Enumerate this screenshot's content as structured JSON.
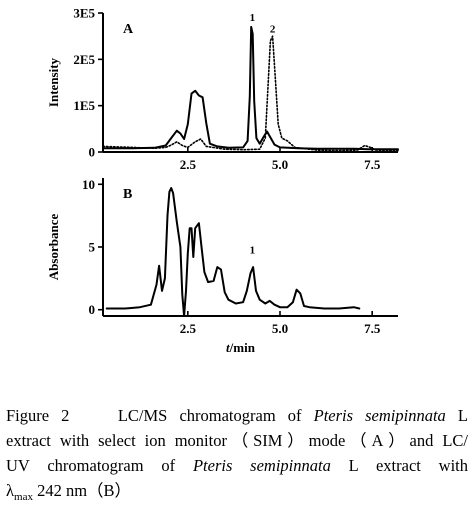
{
  "chart_data": [
    {
      "type": "line",
      "panel_label": "A",
      "ylabel": "Intensity",
      "xlim": [
        0.2,
        8.2
      ],
      "ylim": [
        0,
        300000
      ],
      "x_ticks": [
        "2.5",
        "5.0",
        "7.5"
      ],
      "x_tick_values": [
        2.5,
        5.0,
        7.5
      ],
      "y_ticks": [
        "0",
        "1E5",
        "2E5",
        "3E5"
      ],
      "y_tick_values": [
        0,
        100000,
        200000,
        300000
      ],
      "peak_labels": [
        {
          "text": "1",
          "x": 4.25,
          "y": 283000
        },
        {
          "text": "2",
          "x": 4.8,
          "y": 258000
        }
      ],
      "series": [
        {
          "style": "solid",
          "x": [
            0.2,
            1.0,
            1.6,
            1.9,
            2.05,
            2.2,
            2.3,
            2.4,
            2.5,
            2.6,
            2.7,
            2.8,
            2.9,
            3.0,
            3.1,
            3.3,
            3.6,
            4.0,
            4.12,
            4.18,
            4.22,
            4.26,
            4.3,
            4.36,
            4.45,
            4.55,
            4.65,
            4.75,
            4.85,
            5.0,
            5.5,
            6.0,
            7.0,
            7.4,
            8.2
          ],
          "y": [
            8000,
            8000,
            9000,
            14000,
            30000,
            46000,
            40000,
            28000,
            60000,
            126000,
            132000,
            122000,
            118000,
            62000,
            18000,
            12000,
            9000,
            10000,
            24000,
            120000,
            270000,
            255000,
            110000,
            30000,
            18000,
            32000,
            44000,
            30000,
            16000,
            10000,
            8000,
            7000,
            7000,
            6000,
            6000
          ]
        },
        {
          "style": "dotted",
          "x": [
            0.2,
            1.0,
            1.6,
            1.9,
            2.05,
            2.2,
            2.35,
            2.5,
            2.7,
            2.85,
            3.0,
            3.5,
            4.0,
            4.45,
            4.6,
            4.68,
            4.74,
            4.8,
            4.88,
            4.95,
            5.05,
            5.2,
            5.4,
            6.0,
            6.5,
            7.1,
            7.3,
            7.45,
            7.6,
            8.2
          ],
          "y": [
            12000,
            10000,
            8000,
            10000,
            15000,
            22000,
            14000,
            10000,
            22000,
            28000,
            12000,
            6000,
            5000,
            6000,
            30000,
            150000,
            240000,
            250000,
            150000,
            60000,
            30000,
            24000,
            10000,
            4000,
            3000,
            4000,
            14000,
            10000,
            4000,
            3000
          ]
        }
      ]
    },
    {
      "type": "line",
      "panel_label": "B",
      "xlabel": "t/min",
      "ylabel": "Absorbance",
      "xlim": [
        0.2,
        8.2
      ],
      "ylim": [
        -0.5,
        10.5
      ],
      "x_ticks": [
        "2.5",
        "5.0",
        "7.5"
      ],
      "x_tick_values": [
        2.5,
        5.0,
        7.5
      ],
      "y_ticks": [
        "0",
        "5",
        "10"
      ],
      "y_tick_values": [
        0,
        5,
        10
      ],
      "peak_labels": [
        {
          "text": "1",
          "x": 4.25,
          "y": 4.5
        }
      ],
      "series": [
        {
          "style": "solid",
          "x": [
            0.3,
            0.8,
            1.2,
            1.5,
            1.65,
            1.72,
            1.8,
            1.88,
            1.95,
            2.0,
            2.05,
            2.1,
            2.2,
            2.3,
            2.35,
            2.4,
            2.45,
            2.5,
            2.55,
            2.6,
            2.65,
            2.7,
            2.8,
            2.88,
            2.95,
            3.05,
            3.2,
            3.3,
            3.4,
            3.5,
            3.6,
            3.8,
            4.0,
            4.1,
            4.2,
            4.27,
            4.35,
            4.45,
            4.6,
            4.72,
            4.85,
            5.0,
            5.2,
            5.35,
            5.45,
            5.55,
            5.65,
            5.8,
            6.2,
            6.6,
            7.0,
            7.15
          ],
          "y": [
            0.1,
            0.1,
            0.2,
            0.4,
            2.0,
            3.5,
            1.5,
            2.5,
            7.5,
            9.4,
            9.7,
            9.3,
            7.0,
            5.0,
            1.2,
            -0.5,
            1.5,
            4.5,
            6.5,
            6.5,
            4.2,
            6.5,
            6.9,
            4.8,
            3.0,
            2.2,
            2.3,
            3.4,
            3.2,
            1.4,
            0.8,
            0.5,
            0.6,
            1.5,
            2.9,
            3.4,
            1.5,
            0.8,
            0.5,
            0.7,
            0.4,
            0.2,
            0.2,
            0.6,
            1.6,
            1.3,
            0.3,
            0.2,
            0.1,
            0.1,
            0.2,
            0.1
          ]
        }
      ]
    }
  ],
  "caption": {
    "fig_label": "Figure 2",
    "l1_a": "LC/MS chromatogram of ",
    "l1_i": "Pteris semipinnata",
    "l1_b": " L",
    "l2": "extract with select ion monitor（SIM）mode（A）and LC/",
    "l3_a": "UV chromatogram of ",
    "l3_i": "Pteris semipinnata",
    "l3_b": " L extract with",
    "l4_lambda": "λ",
    "l4_sub": "max",
    "l4_b": " 242 nm（B）"
  }
}
